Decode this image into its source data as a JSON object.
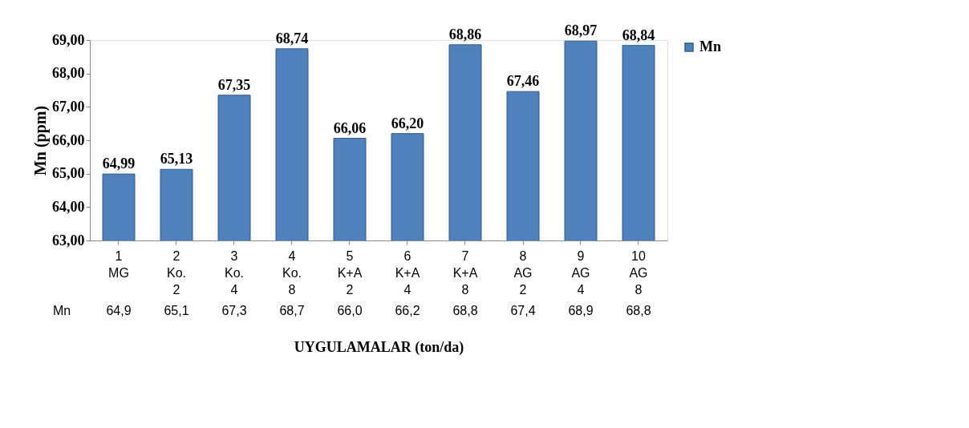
{
  "chart_data": {
    "type": "bar",
    "ylabel": "Mn (ppm)",
    "xlabel": "UYGULAMALAR (ton/da)",
    "categories": [
      "1\nMG",
      "2\nKo.\n2",
      "3\nKo.\n4",
      "4\nKo.\n8",
      "5\nK+A\n2",
      "6\nK+A\n4",
      "7\nK+A\n8",
      "8\nAG\n2",
      "9\nAG\n4",
      "10\nAG\n8"
    ],
    "series": [
      {
        "name": "Mn",
        "color": "#4f81bd",
        "values": [
          64.99,
          65.13,
          67.35,
          68.74,
          66.06,
          66.2,
          68.86,
          67.46,
          68.97,
          68.84
        ],
        "value_labels": [
          "64,99",
          "65,13",
          "67,35",
          "68,74",
          "66,06",
          "66,20",
          "68,86",
          "67,46",
          "68,97",
          "68,84"
        ]
      }
    ],
    "ylim": [
      63,
      69
    ],
    "yticks": [
      {
        "value": 63,
        "label": "63,00"
      },
      {
        "value": 64,
        "label": "64,00"
      },
      {
        "value": 65,
        "label": "65,00"
      },
      {
        "value": 66,
        "label": "66,00"
      },
      {
        "value": 67,
        "label": "67,00"
      },
      {
        "value": 68,
        "label": "68,00"
      },
      {
        "value": 69,
        "label": "69,00"
      }
    ],
    "annotations": [
      "Mn",
      "64,9",
      "65,1",
      "67,3",
      "68,7",
      "66,0",
      "66,2",
      "68,8",
      "67,4",
      "68,9",
      "68,8"
    ],
    "grid": false,
    "legend": "right"
  }
}
